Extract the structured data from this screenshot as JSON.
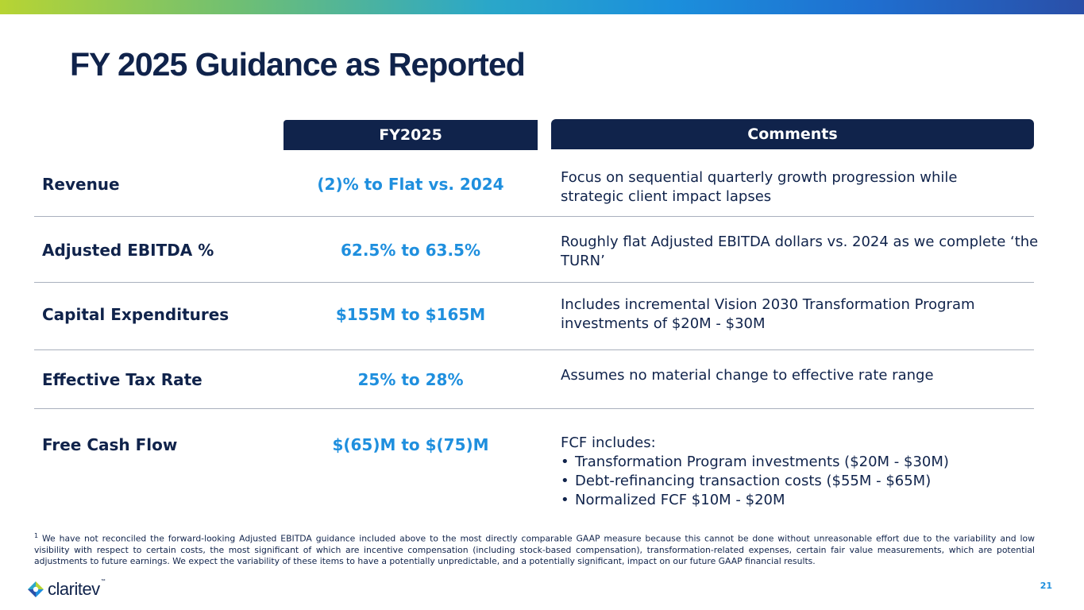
{
  "header": {
    "title": "FY 2025 Guidance as Reported"
  },
  "table": {
    "col_fy": "FY2025",
    "col_comments": "Comments",
    "rows": [
      {
        "label": "Revenue",
        "value": "(2)% to Flat vs. 2024",
        "comment": "Focus on sequential quarterly growth progression while strategic client impact lapses"
      },
      {
        "label": "Adjusted EBITDA %",
        "value": "62.5% to 63.5%",
        "comment": "Roughly flat Adjusted EBITDA dollars vs. 2024 as we complete ‘the TURN’"
      },
      {
        "label": "Capital Expenditures",
        "value": "$155M to $165M",
        "comment": "Includes incremental Vision 2030 Transformation Program investments of $20M - $30M"
      },
      {
        "label": "Effective Tax Rate",
        "value": "25% to 28%",
        "comment": "Assumes no material change to effective rate range"
      },
      {
        "label": "Free Cash Flow",
        "value": "$(65)M to $(75)M",
        "comment": "FCF includes:",
        "bullets": [
          "Transformation Program investments ($20M - $30M)",
          "Debt-refinancing transaction costs ($55M - $65M)",
          "Normalized FCF $10M - $20M"
        ]
      }
    ]
  },
  "footnote": {
    "marker": "1",
    "text": "We have not reconciled the forward-looking Adjusted EBITDA guidance included above to the most directly comparable GAAP measure because this cannot be done without unreasonable effort due to the variability and low visibility with respect to certain costs, the most significant of which are incentive compensation (including stock-based compensation), transformation-related expenses, certain fair value measurements, which are potential adjustments to future earnings. We expect the variability of these items to have a potentially unpredictable, and a potentially significant, impact on our future GAAP financial results."
  },
  "footer": {
    "logo_text": "claritev",
    "logo_tm": "™",
    "page_number": "21"
  },
  "colors": {
    "navy": "#10234b",
    "accent_blue": "#1f8fde"
  },
  "icons": {
    "logo": "claritev-logo-icon"
  }
}
